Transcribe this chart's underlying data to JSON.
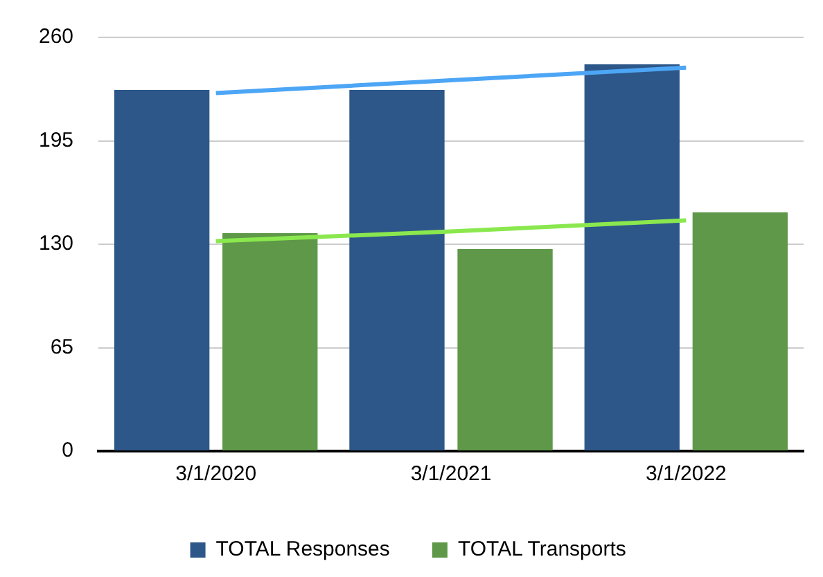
{
  "chart_data": {
    "type": "bar",
    "categories": [
      "3/1/2020",
      "3/1/2021",
      "3/1/2022"
    ],
    "series": [
      {
        "name": "TOTAL Responses",
        "color": "#2d5788",
        "values": [
          227,
          227,
          243
        ]
      },
      {
        "name": "TOTAL Transports",
        "color": "#5e9848",
        "values": [
          137,
          127,
          150
        ]
      },
      {
        "type": "line",
        "color": "#4da6f5",
        "x": [
          "3/1/2020",
          "3/1/2021",
          "3/1/2022"
        ],
        "values": [
          225,
          233,
          241
        ]
      },
      {
        "type": "line",
        "color": "#8ae84e",
        "x": [
          "3/1/2020",
          "3/1/2021",
          "3/1/2022"
        ],
        "values": [
          132,
          138,
          145
        ]
      }
    ],
    "ylim": [
      0,
      260
    ],
    "yticks": [
      0,
      65,
      130,
      195,
      260
    ],
    "grid": "y",
    "legend": "bottom",
    "marker": "none"
  }
}
